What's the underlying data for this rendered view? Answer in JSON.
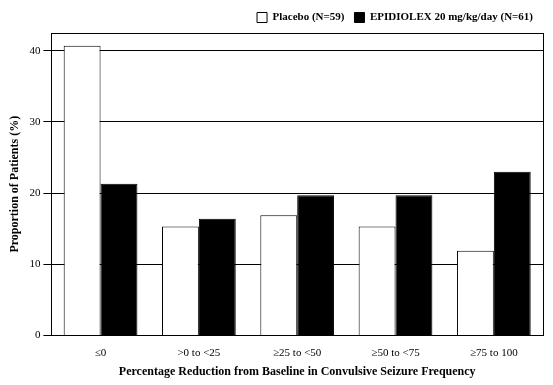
{
  "chart_data": {
    "type": "bar",
    "x_label": "Percentage Reduction from Baseline in Convulsive Seizure Frequency",
    "y_label": "Proportion of Patients (%)",
    "categories": [
      "≤0",
      ">0 to <25",
      "≥25 to <50",
      "≥50 to <75",
      "≥75 to 100"
    ],
    "series": [
      {
        "name": "Placebo (N=59)",
        "color": "#ffffff",
        "values": [
          40.7,
          15.3,
          16.9,
          15.3,
          11.9
        ]
      },
      {
        "name": "EPIDIOLEX 20 mg/kg/day (N=61)",
        "color": "#000000",
        "values": [
          21.3,
          16.4,
          19.7,
          19.7,
          23.0
        ]
      }
    ],
    "ylim": [
      0,
      42.5
    ],
    "yticks": [
      0,
      10,
      20,
      30,
      40
    ],
    "grid": true,
    "legend": "top right"
  }
}
